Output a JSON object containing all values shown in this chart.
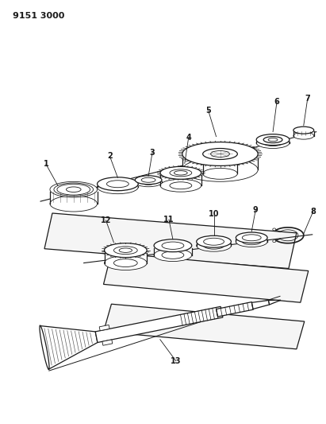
{
  "title_text": "9151 3000",
  "bg": "#ffffff",
  "lc": "#1a1a1a",
  "figsize": [
    4.11,
    5.33
  ],
  "dpi": 100
}
